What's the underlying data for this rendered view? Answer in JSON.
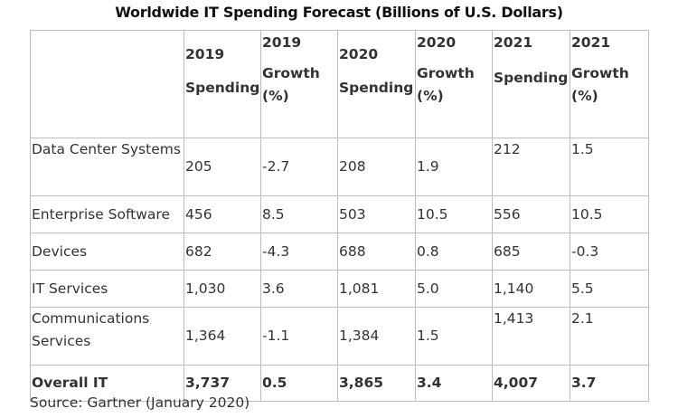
{
  "title": "Worldwide IT Spending Forecast (Billions of U.S. Dollars)",
  "headers": {
    "y2019_spending_year": "2019",
    "y2019_spending_label": "Spending",
    "y2019_growth_year": "2019",
    "y2019_growth_label": "Growth (%)",
    "y2020_spending_year": "2020",
    "y2020_spending_label": "Spending",
    "y2020_growth_year": "2020",
    "y2020_growth_label": "Growth (%)",
    "y2021_spending_year": "2021",
    "y2021_spending_label": "Spending",
    "y2021_growth_year": "2021",
    "y2021_growth_label": "Growth (%)"
  },
  "rows": [
    {
      "segment": "Data Center Systems",
      "s2019": "205",
      "g2019": "-2.7",
      "s2020": "208",
      "g2020": "1.9",
      "s2021": "212",
      "g2021": "1.5"
    },
    {
      "segment": "Enterprise Software",
      "s2019": "456",
      "g2019": "8.5",
      "s2020": "503",
      "g2020": "10.5",
      "s2021": "556",
      "g2021": "10.5"
    },
    {
      "segment": "Devices",
      "s2019": "682",
      "g2019": "-4.3",
      "s2020": "688",
      "g2020": "0.8",
      "s2021": "685",
      "g2021": "-0.3"
    },
    {
      "segment": "IT Services",
      "s2019": "1,030",
      "g2019": "3.6",
      "s2020": "1,081",
      "g2020": "5.0",
      "s2021": "1,140",
      "g2021": "5.5"
    },
    {
      "segment": "Communications Services",
      "s2019": "1,364",
      "g2019": "-1.1",
      "s2020": "1,384",
      "g2020": "1.5",
      "s2021": "1,413",
      "g2021": "2.1"
    },
    {
      "segment": "Overall IT",
      "s2019": "3,737",
      "g2019": "0.5",
      "s2020": "3,865",
      "g2020": "3.4",
      "s2021": "4,007",
      "g2021": "3.7"
    }
  ],
  "source": "Source: Gartner (January 2020)"
}
